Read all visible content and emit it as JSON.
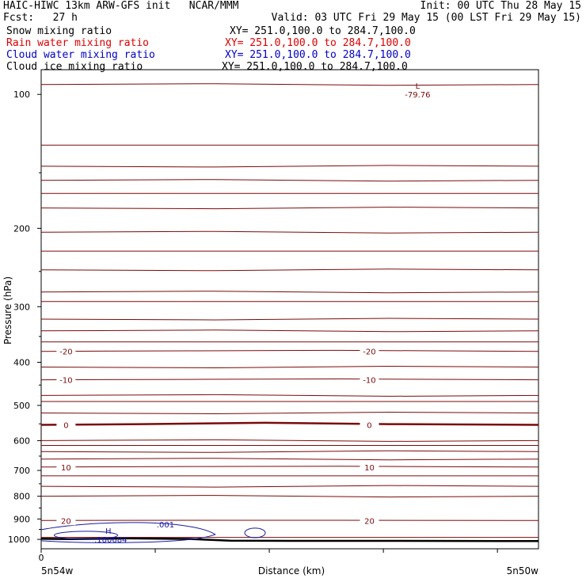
{
  "header": {
    "model_line": "HAIC-HIWC 13km ARW-GFS init   NCAR/MMM",
    "init_line": "Init: 00 UTC Thu 28 May 15",
    "fcst_line": "Fcst:   27 h",
    "valid_line": "Valid: 03 UTC Fri 29 May 15 (00 LST Fri 29 May 15)"
  },
  "fields": [
    {
      "label": "Snow mixing ratio",
      "xy": "XY= 251.0,100.0 to 284.7,100.0",
      "color": "#000000"
    },
    {
      "label": "Rain water mixing ratio",
      "xy": "XY= 251.0,100.0 to 284.7,100.0",
      "color": "#e00000"
    },
    {
      "label": "Cloud water mixing ratio",
      "xy": "XY= 251.0,100.0 to 284.7,100.0",
      "color": "#0000c8"
    },
    {
      "label": "Cloud ice mixing ratio",
      "xy": "XY= 251.0,100.0 to 284.7,100.0",
      "color": "#000000"
    }
  ],
  "colors": {
    "temperature": "#7a0a0a",
    "cloud_water": "#1a1aa0",
    "terrain": "#000000",
    "axis": "#000000"
  },
  "chart_data": {
    "type": "line",
    "title": "",
    "xlabel": "Distance (km)",
    "ylabel": "Pressure (hPa)",
    "y_scale": "log",
    "ylim": [
      1050,
      88
    ],
    "xlim": [
      0,
      1
    ],
    "x_tick_labels": [
      "0"
    ],
    "x_end_labels": {
      "left": "5n54w",
      "right": "5n50w"
    },
    "y_ticks": [
      100,
      200,
      300,
      400,
      500,
      600,
      700,
      800,
      900,
      1000
    ],
    "temperature_contours": [
      {
        "label": "-20",
        "x": [
          0,
          0.3,
          0.6,
          1
        ],
        "p": [
          378,
          377,
          376,
          378
        ]
      },
      {
        "label": "-10",
        "x": [
          0,
          0.3,
          0.6,
          1
        ],
        "p": [
          438,
          437,
          436,
          438
        ]
      },
      {
        "label": "0",
        "x": [
          0,
          0.2,
          0.45,
          0.7,
          1
        ],
        "p": [
          553,
          551,
          547,
          551,
          553
        ]
      },
      {
        "label": "10",
        "x": [
          0,
          0.3,
          0.6,
          1
        ],
        "p": [
          688,
          686,
          685,
          688
        ]
      },
      {
        "label": "20",
        "x": [
          0,
          0.3,
          0.6,
          1
        ],
        "p": [
          907,
          906,
          906,
          907
        ]
      }
    ],
    "temperature_extra_levels": [
      95,
      130,
      145,
      156,
      167,
      180,
      204,
      225,
      248,
      278,
      292,
      320,
      340,
      360,
      410,
      475,
      490,
      520,
      600,
      615,
      635,
      660,
      720,
      760,
      800,
      990
    ],
    "extremes": [
      {
        "kind": "L",
        "value": "-79.76",
        "series": "temperature"
      },
      {
        "kind": "H",
        "value": ".180684",
        "series": "cloud_water"
      }
    ],
    "cloud_water_label": ".001"
  }
}
